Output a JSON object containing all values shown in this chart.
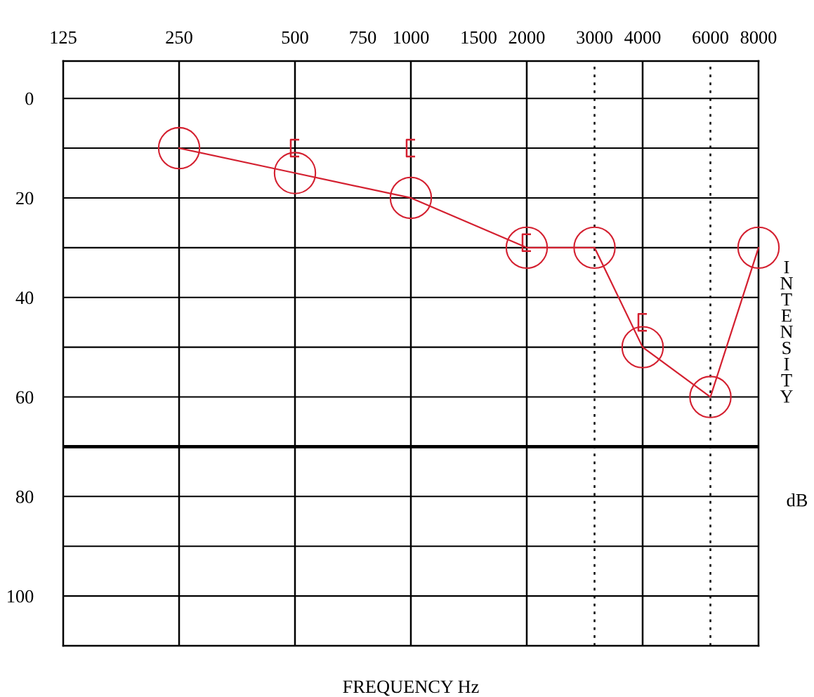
{
  "chart_data": {
    "type": "line",
    "xlabel": "FREQUENCY Hz",
    "ylabel": "INTENSITY",
    "annotations": [
      "dB"
    ],
    "log": "x",
    "xlim": [
      125,
      8000
    ],
    "ylim": [
      110,
      -7.5
    ],
    "xticks": [
      125,
      250,
      500,
      750,
      1000,
      1500,
      2000,
      3000,
      4000,
      6000,
      8000
    ],
    "yticks": [
      0,
      {
        "value": 10,
        "label": null
      },
      20,
      {
        "value": 30,
        "label": null
      },
      40,
      {
        "value": 50,
        "label": null
      },
      60,
      {
        "value": 70,
        "label": null
      },
      80,
      {
        "value": 90,
        "label": null
      },
      100
    ],
    "grid": "y",
    "legend": false,
    "x": [
      250,
      500,
      1000,
      2000,
      3000,
      4000,
      6000,
      8000
    ],
    "series": [
      {
        "color": "#d42030",
        "marker": "circle",
        "line_style": "solid",
        "values": [
          10,
          15,
          20,
          30,
          30,
          50,
          60,
          30
        ]
      },
      {
        "type": "scatter",
        "color": "#d42030",
        "x": [
          500,
          1000,
          2000,
          4000
        ],
        "values": [
          10,
          10,
          29,
          45
        ]
      }
    ],
    "ref_lines": [
      {
        "axis": "x",
        "value": 250,
        "color": "#000000",
        "line_style": "solid"
      },
      {
        "axis": "x",
        "value": 500,
        "color": "#000000",
        "line_style": "solid"
      },
      {
        "axis": "x",
        "value": 1000,
        "color": "#000000",
        "line_style": "solid"
      },
      {
        "axis": "x",
        "value": 2000,
        "color": "#000000",
        "line_style": "solid"
      },
      {
        "axis": "x",
        "value": 3000,
        "color": "#000000",
        "line_style": "dotted"
      },
      {
        "axis": "x",
        "value": 4000,
        "color": "#000000",
        "line_style": "solid"
      },
      {
        "axis": "x",
        "value": 6000,
        "color": "#000000",
        "line_style": "dotted"
      },
      {
        "axis": "y",
        "value": 70,
        "color": "#000000",
        "line_style": "solid"
      }
    ]
  }
}
